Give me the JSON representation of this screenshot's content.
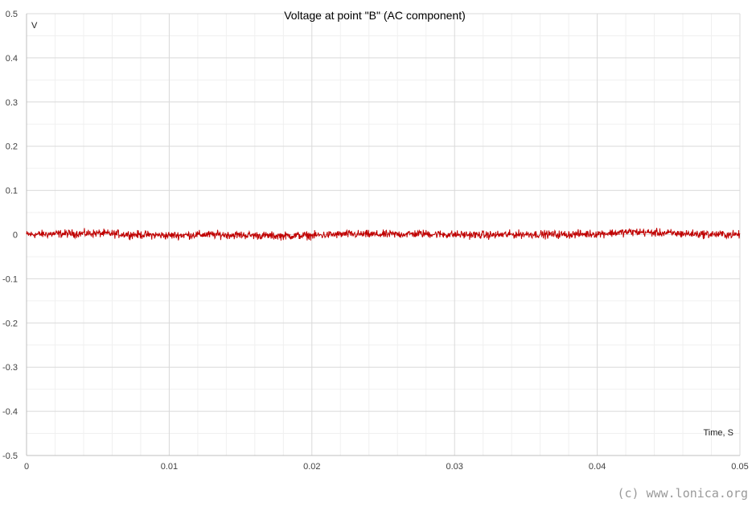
{
  "chart_data": {
    "type": "line",
    "title": "Voltage at point \"B\" (AC component)",
    "xlabel": "Time, S",
    "ylabel": "V",
    "xlim": [
      0,
      0.05
    ],
    "ylim": [
      -0.5,
      0.5
    ],
    "x_ticks": [
      "0",
      "0.01",
      "0.02",
      "0.03",
      "0.04",
      "0.05"
    ],
    "y_ticks": [
      "0.5",
      "0.4",
      "0.3",
      "0.2",
      "0.1",
      "0",
      "-0.1",
      "-0.2",
      "-0.3",
      "-0.4",
      "-0.5"
    ],
    "grid": true,
    "series": [
      {
        "color": "#c00000",
        "x": [
          0,
          0.0025,
          0.005,
          0.0075,
          0.01,
          0.0125,
          0.015,
          0.0175,
          0.02,
          0.0225,
          0.025,
          0.0275,
          0.03,
          0.0325,
          0.035,
          0.0375,
          0.04,
          0.0425,
          0.045,
          0.0475,
          0.05
        ],
        "values": [
          0.0,
          0.002,
          0.003,
          0.0,
          -0.002,
          0.0,
          -0.001,
          -0.003,
          -0.002,
          0.001,
          0.0,
          0.002,
          0.0,
          -0.001,
          0.001,
          0.0,
          0.002,
          0.006,
          0.003,
          0.001,
          0.0
        ],
        "noise_amplitude": 0.012
      }
    ]
  },
  "watermark": "(c) www.lonica.org"
}
